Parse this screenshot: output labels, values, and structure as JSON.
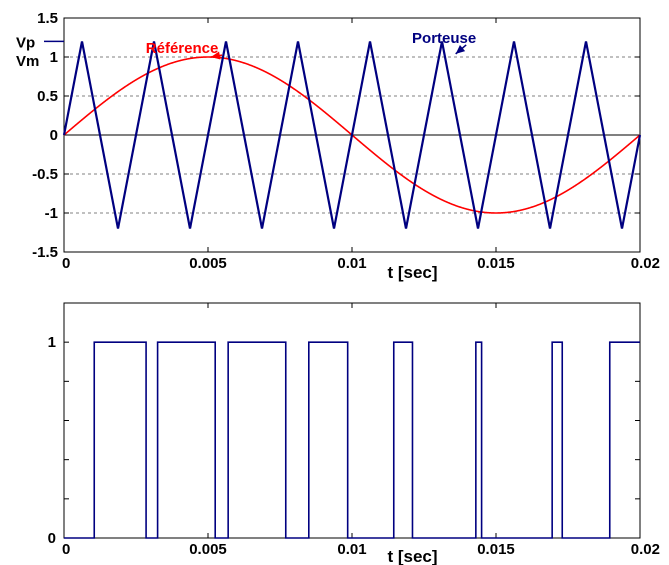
{
  "chart_data": [
    {
      "type": "line",
      "xlabel": "t [sec]",
      "ylabel": "",
      "xlim": [
        0,
        0.02
      ],
      "ylim": [
        -1.5,
        1.5
      ],
      "xticks": [
        0,
        0.005,
        0.01,
        0.015,
        0.02
      ],
      "xtick_labels": [
        "0",
        "0.005",
        "0.01",
        "0.015",
        "0.02"
      ],
      "yticks": [
        -1.5,
        -1,
        -0.5,
        0,
        0.5,
        1,
        1.5
      ],
      "ytick_labels": [
        "-1.5",
        "-1",
        "-0.5",
        "0",
        "0.5",
        "1",
        "1.5"
      ],
      "grid_lines_y": [
        -1,
        -0.5,
        0.5,
        1
      ],
      "zero_line": 0,
      "series": [
        {
          "name": "Référence",
          "kind": "sine",
          "color": "#ff0000",
          "amplitude": 1,
          "frequency_hz": 50,
          "phase": 0
        },
        {
          "name": "Porteuse",
          "kind": "triangle",
          "color": "#000080",
          "amplitude": 1.2,
          "frequency_hz": 400,
          "phase_offset_sec": 0.000625
        }
      ],
      "annotations": [
        {
          "text": "Référence",
          "color": "#ff0000",
          "x": 0.0041,
          "y": 1.05,
          "arrow_to": [
            0.0051,
            1.0
          ]
        },
        {
          "text": "Porteuse",
          "color": "#000080",
          "x": 0.0132,
          "y": 1.18,
          "arrow_to": [
            0.0136,
            1.04
          ]
        }
      ],
      "side_labels": [
        {
          "text": "Vp",
          "color": "#000080",
          "y": 1.2
        },
        {
          "text": "Vm",
          "color": "#ff0000",
          "y": 1.0
        }
      ]
    },
    {
      "type": "line",
      "xlabel": "t [sec]",
      "ylabel": "",
      "xlim": [
        0,
        0.02
      ],
      "ylim": [
        0,
        1.2
      ],
      "xticks": [
        0,
        0.005,
        0.01,
        0.015,
        0.02
      ],
      "xtick_labels": [
        "0",
        "0.005",
        "0.01",
        "0.015",
        "0.02"
      ],
      "yticks": [
        0,
        1
      ],
      "ytick_labels": [
        "0",
        "1"
      ],
      "minor_yticks": [
        0.2,
        0.4,
        0.6,
        0.8
      ],
      "series": [
        {
          "name": "",
          "kind": "step",
          "color": "#000080",
          "high_intervals": [
            [
              0.00105,
              0.00285
            ],
            [
              0.00325,
              0.00525
            ],
            [
              0.0057,
              0.0077
            ],
            [
              0.0085,
              0.00985
            ],
            [
              0.01145,
              0.0121
            ],
            [
              0.0143,
              0.0145
            ],
            [
              0.01695,
              0.0173
            ],
            [
              0.01895,
              0.02
            ]
          ]
        }
      ]
    }
  ]
}
